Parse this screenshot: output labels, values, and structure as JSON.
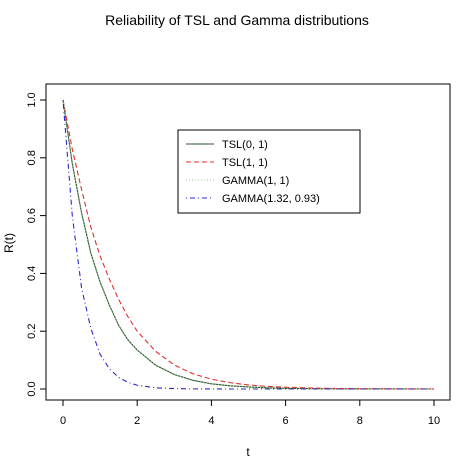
{
  "chart_data": {
    "type": "line",
    "title": "Reliability of TSL and Gamma distributions",
    "xlabel": "t",
    "ylabel": "R(t)",
    "xlim": [
      0,
      10
    ],
    "ylim": [
      0,
      1
    ],
    "x_ticks": [
      "0",
      "2",
      "4",
      "6",
      "8",
      "10"
    ],
    "y_ticks": [
      "0.0",
      "0.2",
      "0.4",
      "0.6",
      "0.8",
      "1.0"
    ],
    "grid": false,
    "legend_position": "top-right",
    "x": [
      0,
      0.25,
      0.5,
      0.75,
      1,
      1.25,
      1.5,
      1.75,
      2,
      2.5,
      3,
      3.5,
      4,
      4.5,
      5,
      5.5,
      6,
      7,
      8,
      9,
      10
    ],
    "series": [
      {
        "name": "TSL(0, 1)",
        "color": "#2d4d2d",
        "dash": "solid",
        "values": [
          1.0,
          0.78,
          0.61,
          0.47,
          0.37,
          0.29,
          0.22,
          0.17,
          0.135,
          0.082,
          0.05,
          0.03,
          0.018,
          0.011,
          0.007,
          0.004,
          0.0025,
          0.0009,
          0.0003,
          0.0001,
          0.0
        ]
      },
      {
        "name": "TSL(1, 1)",
        "color": "#e03030",
        "dash": "dashed",
        "values": [
          1.0,
          0.83,
          0.69,
          0.56,
          0.46,
          0.38,
          0.31,
          0.25,
          0.2,
          0.13,
          0.083,
          0.053,
          0.034,
          0.022,
          0.014,
          0.009,
          0.006,
          0.0025,
          0.001,
          0.0004,
          0.0002
        ]
      },
      {
        "name": "GAMMA(1, 1)",
        "color": "#8fce8f",
        "dash": "dotted",
        "values": [
          1.0,
          0.78,
          0.61,
          0.47,
          0.37,
          0.29,
          0.22,
          0.17,
          0.135,
          0.082,
          0.05,
          0.03,
          0.018,
          0.011,
          0.007,
          0.004,
          0.0025,
          0.0009,
          0.0003,
          0.0001,
          0.0
        ]
      },
      {
        "name": "GAMMA(1.32, 0.93)",
        "color": "#2a2ad0",
        "dash": "dotdash",
        "values": [
          1.0,
          0.6,
          0.35,
          0.21,
          0.12,
          0.07,
          0.04,
          0.023,
          0.013,
          0.004,
          0.0013,
          0.0004,
          0.0001,
          0.0,
          0.0,
          0.0,
          0.0,
          0.0,
          0.0,
          0.0,
          0.0
        ]
      }
    ]
  }
}
